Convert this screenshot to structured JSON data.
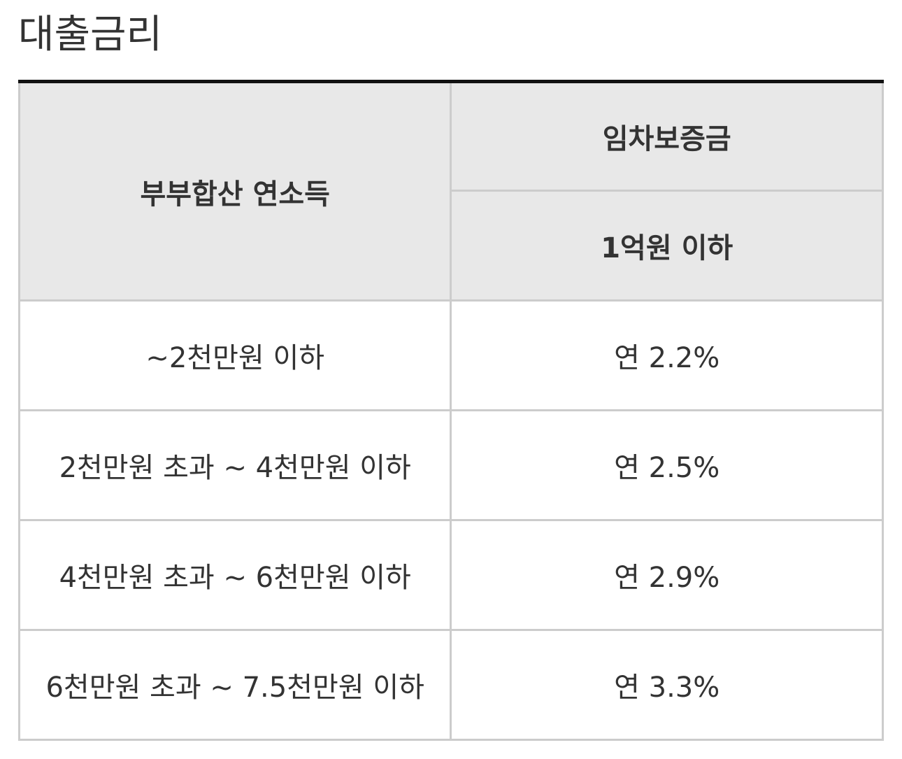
{
  "header": {
    "title": "대출금리"
  },
  "table": {
    "headers": {
      "income": "부부합산 연소득",
      "deposit": "임차보증금",
      "deposit_sub": "1억원 이하"
    },
    "rows": [
      [
        "~2천만원 이하",
        "연 2.2%"
      ],
      [
        "2천만원 초과 ~ 4천만원 이하",
        "연 2.5%"
      ],
      [
        "4천만원 초과 ~ 6천만원 이하",
        "연 2.9%"
      ],
      [
        "6천만원 초과 ~ 7.5천만원 이하",
        "연 3.3%"
      ]
    ]
  }
}
